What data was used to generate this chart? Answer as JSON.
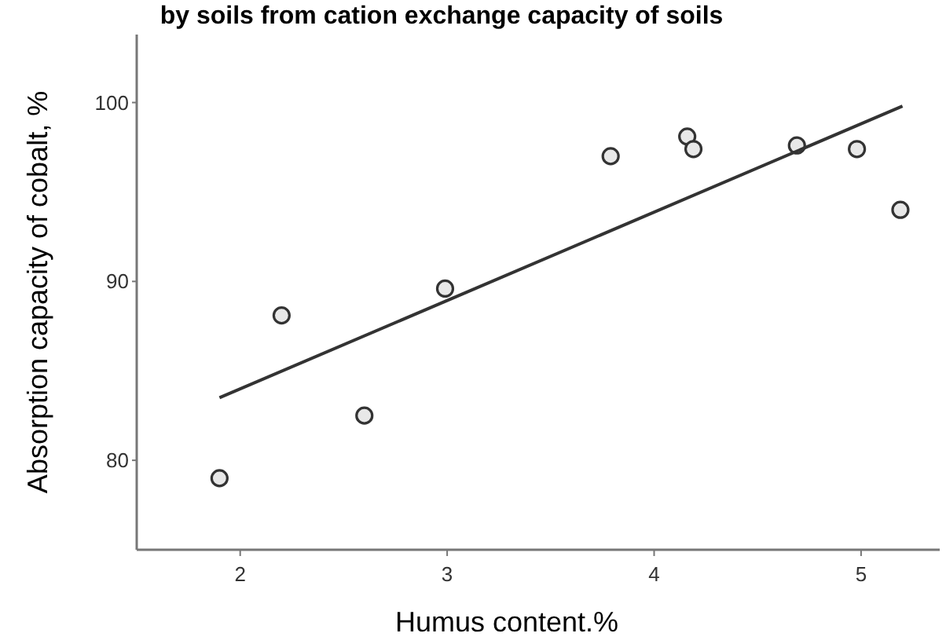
{
  "chart_data": {
    "type": "scatter",
    "title": "by soils from cation exchange capacity of soils",
    "xlabel": "Humus content.%",
    "ylabel": "Absorption capacity of cobalt, %",
    "xlim": [
      1.5,
      5.38
    ],
    "xticks": [
      2,
      3,
      4,
      5
    ],
    "ylim": [
      75,
      103.8
    ],
    "yticks": [
      80,
      90,
      100
    ],
    "grid": false,
    "marker": "circle",
    "series": [
      {
        "color": "#333333",
        "x": [
          1.9,
          2.2,
          2.6,
          2.99,
          3.79,
          4.16,
          4.19,
          4.69,
          4.98,
          5.19
        ],
        "values": [
          79,
          88.1,
          82.5,
          89.6,
          97,
          98.1,
          97.4,
          97.6,
          97.4,
          94
        ]
      },
      {
        "type": "line",
        "color": "#333333",
        "line_style": "solid",
        "marker": "none",
        "x": [
          1.9,
          5.2
        ],
        "values": [
          83.5,
          99.8
        ]
      }
    ]
  }
}
